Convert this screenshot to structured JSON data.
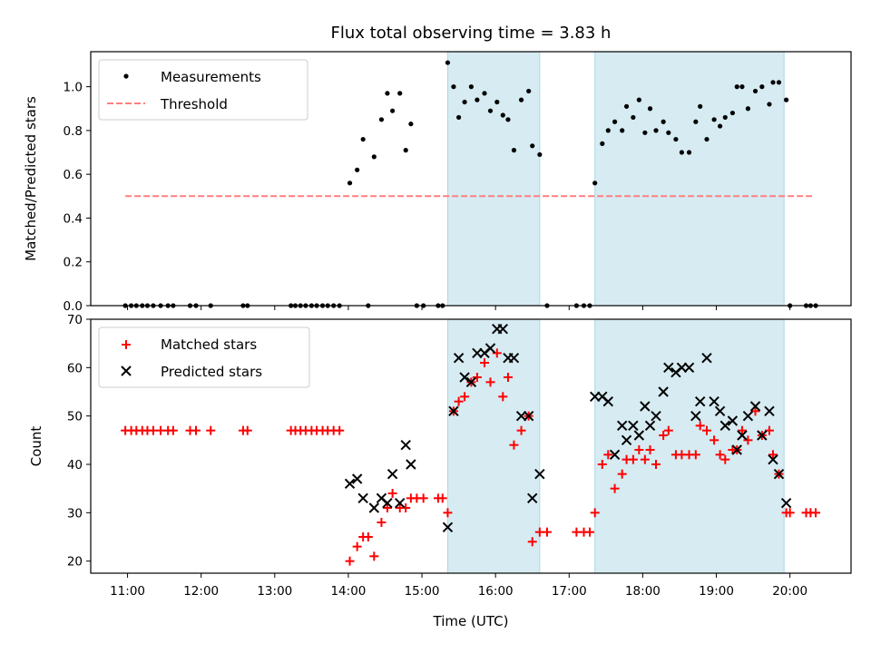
{
  "figure": {
    "title": "Flux total observing time = 3.83 h",
    "xlabel": "Time (UTC)",
    "x_tick_labels": [
      "11:00",
      "12:00",
      "13:00",
      "14:00",
      "15:00",
      "16:00",
      "17:00",
      "18:00",
      "19:00",
      "20:00"
    ]
  },
  "chart_data": [
    {
      "type": "scatter",
      "panel": "top",
      "ylabel": "Matched/Predicted stars",
      "x_unit": "hour of day (UTC)",
      "xlim": [
        10.5,
        20.83
      ],
      "ylim": [
        0,
        1.16
      ],
      "y_ticks": [
        0.0,
        0.2,
        0.4,
        0.6,
        0.8,
        1.0
      ],
      "y_tick_labels": [
        "0.0",
        "0.2",
        "0.4",
        "0.6",
        "0.8",
        "1.0"
      ],
      "shaded_intervals": [
        [
          15.35,
          16.6
        ],
        [
          17.35,
          19.92
        ]
      ],
      "shade_color": "#add8e6",
      "legend_position": "upper left",
      "series": [
        {
          "name": "Measurements",
          "marker": "dot",
          "color": "#000000",
          "points": [
            [
              10.97,
              0
            ],
            [
              11.05,
              0
            ],
            [
              11.12,
              0
            ],
            [
              11.2,
              0
            ],
            [
              11.27,
              0
            ],
            [
              11.35,
              0
            ],
            [
              11.45,
              0
            ],
            [
              11.55,
              0
            ],
            [
              11.62,
              0
            ],
            [
              11.85,
              0
            ],
            [
              11.93,
              0
            ],
            [
              12.13,
              0
            ],
            [
              12.57,
              0
            ],
            [
              12.63,
              0
            ],
            [
              13.22,
              0
            ],
            [
              13.28,
              0
            ],
            [
              13.35,
              0
            ],
            [
              13.42,
              0
            ],
            [
              13.5,
              0
            ],
            [
              13.57,
              0
            ],
            [
              13.65,
              0
            ],
            [
              13.72,
              0
            ],
            [
              13.8,
              0
            ],
            [
              13.88,
              0
            ],
            [
              14.27,
              0
            ],
            [
              14.93,
              0
            ],
            [
              15.02,
              0
            ],
            [
              15.22,
              0
            ],
            [
              15.28,
              0
            ],
            [
              16.7,
              0
            ],
            [
              17.1,
              0
            ],
            [
              17.2,
              0
            ],
            [
              17.28,
              0
            ],
            [
              20.0,
              0
            ],
            [
              20.22,
              0
            ],
            [
              20.28,
              0
            ],
            [
              20.35,
              0
            ],
            [
              14.02,
              0.56
            ],
            [
              14.12,
              0.62
            ],
            [
              14.2,
              0.76
            ],
            [
              14.35,
              0.68
            ],
            [
              14.45,
              0.85
            ],
            [
              14.53,
              0.97
            ],
            [
              14.6,
              0.89
            ],
            [
              14.7,
              0.97
            ],
            [
              14.78,
              0.71
            ],
            [
              14.85,
              0.83
            ],
            [
              15.35,
              1.11
            ],
            [
              15.43,
              1.0
            ],
            [
              15.5,
              0.86
            ],
            [
              15.58,
              0.93
            ],
            [
              15.67,
              1.0
            ],
            [
              15.75,
              0.94
            ],
            [
              15.85,
              0.97
            ],
            [
              15.93,
              0.89
            ],
            [
              16.02,
              0.93
            ],
            [
              16.1,
              0.87
            ],
            [
              16.17,
              0.85
            ],
            [
              16.25,
              0.71
            ],
            [
              16.35,
              0.94
            ],
            [
              16.45,
              0.98
            ],
            [
              16.5,
              0.73
            ],
            [
              16.6,
              0.69
            ],
            [
              17.35,
              0.56
            ],
            [
              17.45,
              0.74
            ],
            [
              17.53,
              0.8
            ],
            [
              17.62,
              0.84
            ],
            [
              17.72,
              0.8
            ],
            [
              17.78,
              0.91
            ],
            [
              17.87,
              0.86
            ],
            [
              17.95,
              0.94
            ],
            [
              18.03,
              0.79
            ],
            [
              18.1,
              0.9
            ],
            [
              18.18,
              0.8
            ],
            [
              18.28,
              0.84
            ],
            [
              18.35,
              0.79
            ],
            [
              18.45,
              0.76
            ],
            [
              18.53,
              0.7
            ],
            [
              18.63,
              0.7
            ],
            [
              18.72,
              0.84
            ],
            [
              18.78,
              0.91
            ],
            [
              18.87,
              0.76
            ],
            [
              18.97,
              0.85
            ],
            [
              19.05,
              0.82
            ],
            [
              19.12,
              0.86
            ],
            [
              19.22,
              0.88
            ],
            [
              19.28,
              1.0
            ],
            [
              19.35,
              1.0
            ],
            [
              19.43,
              0.9
            ],
            [
              19.53,
              0.98
            ],
            [
              19.62,
              1.0
            ],
            [
              19.72,
              0.92
            ],
            [
              19.77,
              1.02
            ],
            [
              19.85,
              1.02
            ],
            [
              19.95,
              0.94
            ]
          ]
        },
        {
          "name": "Threshold",
          "style": "dashed",
          "color": "#ff7f7f",
          "points": [
            [
              10.97,
              0.5
            ],
            [
              20.3,
              0.5
            ]
          ]
        }
      ]
    },
    {
      "type": "scatter",
      "panel": "bottom",
      "ylabel": "Count",
      "x_unit": "hour of day (UTC)",
      "xlim": [
        10.5,
        20.83
      ],
      "ylim": [
        17.5,
        70
      ],
      "y_ticks": [
        20,
        30,
        40,
        50,
        60,
        70
      ],
      "y_tick_labels": [
        "20",
        "30",
        "40",
        "50",
        "60",
        "70"
      ],
      "shaded_intervals": [
        [
          15.35,
          16.6
        ],
        [
          17.35,
          19.92
        ]
      ],
      "shade_color": "#add8e6",
      "legend_position": "upper left",
      "series": [
        {
          "name": "Matched stars",
          "marker": "plus",
          "color": "#ff0000",
          "points": [
            [
              10.97,
              47
            ],
            [
              11.05,
              47
            ],
            [
              11.12,
              47
            ],
            [
              11.2,
              47
            ],
            [
              11.27,
              47
            ],
            [
              11.35,
              47
            ],
            [
              11.45,
              47
            ],
            [
              11.55,
              47
            ],
            [
              11.62,
              47
            ],
            [
              11.85,
              47
            ],
            [
              11.93,
              47
            ],
            [
              12.13,
              47
            ],
            [
              12.57,
              47
            ],
            [
              12.63,
              47
            ],
            [
              13.22,
              47
            ],
            [
              13.28,
              47
            ],
            [
              13.35,
              47
            ],
            [
              13.42,
              47
            ],
            [
              13.5,
              47
            ],
            [
              13.57,
              47
            ],
            [
              13.65,
              47
            ],
            [
              13.72,
              47
            ],
            [
              13.8,
              47
            ],
            [
              13.88,
              47
            ],
            [
              14.02,
              20
            ],
            [
              14.12,
              23
            ],
            [
              14.2,
              25
            ],
            [
              14.27,
              25
            ],
            [
              14.35,
              21
            ],
            [
              14.45,
              28
            ],
            [
              14.53,
              31
            ],
            [
              14.6,
              34
            ],
            [
              14.7,
              31
            ],
            [
              14.78,
              31
            ],
            [
              14.85,
              33
            ],
            [
              14.93,
              33
            ],
            [
              15.02,
              33
            ],
            [
              15.22,
              33
            ],
            [
              15.28,
              33
            ],
            [
              15.35,
              30
            ],
            [
              15.43,
              51
            ],
            [
              15.5,
              53
            ],
            [
              15.58,
              54
            ],
            [
              15.67,
              57
            ],
            [
              15.75,
              58
            ],
            [
              15.85,
              61
            ],
            [
              15.93,
              57
            ],
            [
              16.02,
              63
            ],
            [
              16.1,
              54
            ],
            [
              16.17,
              58
            ],
            [
              16.25,
              44
            ],
            [
              16.35,
              47
            ],
            [
              16.45,
              50
            ],
            [
              16.5,
              24
            ],
            [
              16.6,
              26
            ],
            [
              16.7,
              26
            ],
            [
              17.1,
              26
            ],
            [
              17.2,
              26
            ],
            [
              17.28,
              26
            ],
            [
              17.35,
              30
            ],
            [
              17.45,
              40
            ],
            [
              17.53,
              42
            ],
            [
              17.62,
              35
            ],
            [
              17.72,
              38
            ],
            [
              17.78,
              41
            ],
            [
              17.87,
              41
            ],
            [
              17.95,
              43
            ],
            [
              18.03,
              41
            ],
            [
              18.1,
              43
            ],
            [
              18.18,
              40
            ],
            [
              18.28,
              46
            ],
            [
              18.35,
              47
            ],
            [
              18.45,
              42
            ],
            [
              18.53,
              42
            ],
            [
              18.63,
              42
            ],
            [
              18.72,
              42
            ],
            [
              18.78,
              48
            ],
            [
              18.87,
              47
            ],
            [
              18.97,
              45
            ],
            [
              19.05,
              42
            ],
            [
              19.12,
              41
            ],
            [
              19.22,
              43
            ],
            [
              19.28,
              43
            ],
            [
              19.35,
              47
            ],
            [
              19.43,
              45
            ],
            [
              19.53,
              51
            ],
            [
              19.62,
              46
            ],
            [
              19.72,
              47
            ],
            [
              19.77,
              42
            ],
            [
              19.85,
              38
            ],
            [
              19.95,
              30
            ],
            [
              20.0,
              30
            ],
            [
              20.22,
              30
            ],
            [
              20.28,
              30
            ],
            [
              20.35,
              30
            ]
          ]
        },
        {
          "name": "Predicted stars",
          "marker": "x",
          "color": "#000000",
          "points": [
            [
              14.02,
              36
            ],
            [
              14.12,
              37
            ],
            [
              14.2,
              33
            ],
            [
              14.35,
              31
            ],
            [
              14.45,
              33
            ],
            [
              14.53,
              32
            ],
            [
              14.6,
              38
            ],
            [
              14.7,
              32
            ],
            [
              14.78,
              44
            ],
            [
              14.85,
              40
            ],
            [
              15.35,
              27
            ],
            [
              15.43,
              51
            ],
            [
              15.5,
              62
            ],
            [
              15.58,
              58
            ],
            [
              15.67,
              57
            ],
            [
              15.75,
              63
            ],
            [
              15.85,
              63
            ],
            [
              15.93,
              64
            ],
            [
              16.02,
              68
            ],
            [
              16.1,
              68
            ],
            [
              16.17,
              62
            ],
            [
              16.25,
              62
            ],
            [
              16.35,
              50
            ],
            [
              16.45,
              50
            ],
            [
              16.5,
              33
            ],
            [
              16.6,
              38
            ],
            [
              17.35,
              54
            ],
            [
              17.45,
              54
            ],
            [
              17.53,
              53
            ],
            [
              17.62,
              42
            ],
            [
              17.72,
              48
            ],
            [
              17.78,
              45
            ],
            [
              17.87,
              48
            ],
            [
              17.95,
              46
            ],
            [
              18.03,
              52
            ],
            [
              18.1,
              48
            ],
            [
              18.18,
              50
            ],
            [
              18.28,
              55
            ],
            [
              18.35,
              60
            ],
            [
              18.45,
              59
            ],
            [
              18.53,
              60
            ],
            [
              18.63,
              60
            ],
            [
              18.72,
              50
            ],
            [
              18.78,
              53
            ],
            [
              18.87,
              62
            ],
            [
              18.97,
              53
            ],
            [
              19.05,
              51
            ],
            [
              19.12,
              48
            ],
            [
              19.22,
              49
            ],
            [
              19.28,
              43
            ],
            [
              19.35,
              46
            ],
            [
              19.43,
              50
            ],
            [
              19.53,
              52
            ],
            [
              19.62,
              46
            ],
            [
              19.72,
              51
            ],
            [
              19.77,
              41
            ],
            [
              19.85,
              38
            ],
            [
              19.95,
              32
            ]
          ]
        }
      ]
    }
  ]
}
